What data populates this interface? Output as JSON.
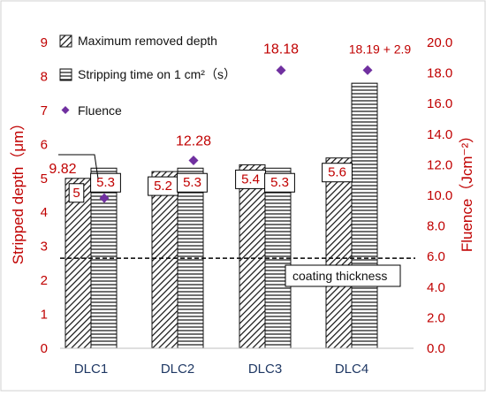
{
  "chart_data": {
    "type": "bar",
    "categories": [
      "DLC1",
      "DLC2",
      "DLC3",
      "DLC4"
    ],
    "ylabel": "Stripped depth（μm）",
    "y2label": "Fluence（Jcm⁻²）",
    "ylim": [
      0,
      9
    ],
    "y2lim": [
      0,
      20
    ],
    "yticks": [
      "0",
      "1",
      "2",
      "3",
      "4",
      "5",
      "6",
      "7",
      "8",
      "9"
    ],
    "y2ticks": [
      "0.0",
      "2.0",
      "4.0",
      "6.0",
      "8.0",
      "10.0",
      "12.0",
      "14.0",
      "16.0",
      "18.0",
      "20.0"
    ],
    "series": [
      {
        "name": "Maximum removed depth",
        "kind": "bar",
        "axis": "left",
        "pattern": "diagonal-hatch",
        "values": [
          5.0,
          5.2,
          5.4,
          5.6
        ],
        "labels": [
          "5",
          "5.2",
          "5.4",
          "5.6"
        ]
      },
      {
        "name": "Stripping time on 1 cm²（s）",
        "kind": "bar",
        "axis": "left",
        "pattern": "horizontal-lines",
        "values": [
          5.3,
          5.3,
          5.3,
          7.8
        ],
        "labels": [
          "5.3",
          "5.3",
          "5.3",
          ""
        ]
      },
      {
        "name": "Fluence",
        "kind": "scatter",
        "axis": "right",
        "marker": "diamond",
        "color": "#7030a0",
        "values": [
          9.82,
          12.28,
          18.18,
          18.19
        ],
        "labels": [
          "9.82",
          "12.28",
          "18.18",
          "18.19 + 2.9"
        ]
      }
    ],
    "reference_line": {
      "label": "coating thickness",
      "value": 2.65,
      "style": "dashed"
    },
    "legend_position": "top-left",
    "grid": false,
    "colors": {
      "tick_text": "#c00000",
      "category_text": "#1f3864",
      "marker": "#7030a0",
      "bar_stroke": "#111111"
    }
  }
}
